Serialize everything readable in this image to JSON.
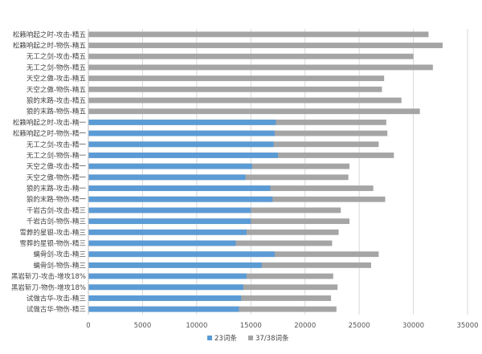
{
  "chart_data": {
    "type": "bar",
    "orientation": "horizontal",
    "stacking": "overlay",
    "categories": [
      "松籁响起之时-攻击-精五",
      "松籁响起之时-物伤-精五",
      "无工之剑-攻击-精五",
      "无工之剑-物伤-精五",
      "天空之傲-攻击-精五",
      "天空之傲-物伤-精五",
      "狼的末路-攻击-精五",
      "狼的末路-物伤-精五",
      "松籁响起之时-攻击-精一",
      "松籁响起之时-物伤-精一",
      "无工之剑-攻击-精一",
      "无工之剑-物伤-精一",
      "天空之傲-攻击-精一",
      "天空之傲-物伤-精一",
      "狼的末路-攻击-精一",
      "狼的末路-物伤-精一",
      "千岩古剑-攻击-精三",
      "千岩古剑-物伤-精三",
      "雪葬的星银-攻击-精三",
      "雪葬的星银-物伤-精三",
      "螭骨剑-攻击-精三",
      "螭骨剑-物伤-精三",
      "黑岩斩刀-攻击-增攻18%",
      "黑岩斩刀-物伤-增攻18%",
      "试做古华-攻击-精三",
      "试做古华-物伤-精三"
    ],
    "series": [
      {
        "name": "23词条",
        "color": "#5B9BD5",
        "values": [
          0,
          0,
          0,
          0,
          0,
          0,
          0,
          0,
          17300,
          17200,
          17100,
          17500,
          15100,
          14500,
          16800,
          17000,
          15000,
          15000,
          14600,
          13600,
          17200,
          16000,
          14600,
          14300,
          14100,
          13900
        ]
      },
      {
        "name": "37/38词条",
        "color": "#A5A5A5",
        "values": [
          31400,
          32700,
          30000,
          31800,
          27300,
          27100,
          28900,
          30600,
          27500,
          27600,
          26800,
          28200,
          24100,
          24000,
          26300,
          27400,
          23300,
          24100,
          23100,
          22500,
          26800,
          26100,
          22600,
          23000,
          22400,
          22900
        ]
      }
    ],
    "xlim": [
      0,
      35000
    ],
    "xticks": [
      "0",
      "5000",
      "10000",
      "15000",
      "20000",
      "25000",
      "30000",
      "35000"
    ],
    "grid": true,
    "legend_position": "bottom",
    "title": "",
    "xlabel": "",
    "ylabel": ""
  },
  "colors": {
    "series_a": "#5B9BD5",
    "series_b": "#A5A5A5",
    "grid": "#D9D9D9",
    "axis": "#BFBFBF"
  }
}
